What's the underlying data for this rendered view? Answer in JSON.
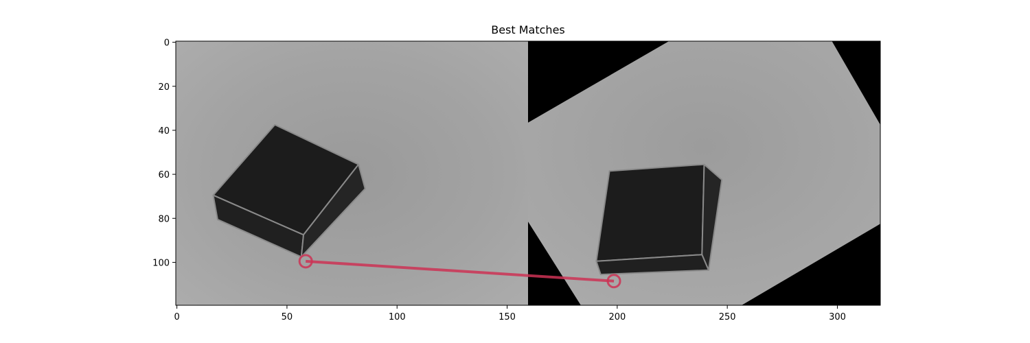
{
  "chart_data": {
    "type": "image",
    "title": "Best Matches",
    "xlabel": "",
    "ylabel": "",
    "xlim": [
      0,
      320
    ],
    "ylim": [
      120,
      0
    ],
    "x_ticks": [
      0,
      50,
      100,
      150,
      200,
      250,
      300
    ],
    "y_ticks": [
      0,
      20,
      40,
      60,
      80,
      100
    ],
    "grid": false,
    "panels": [
      {
        "name": "",
        "x_range": [
          0,
          160
        ],
        "y_range": [
          0,
          120
        ]
      },
      {
        "name": "",
        "x_range": [
          160,
          320
        ],
        "y_range": [
          0,
          120
        ]
      }
    ],
    "objects": [
      {
        "kind": "box-top-face",
        "panel": 0,
        "points": [
          [
            45,
            38
          ],
          [
            83,
            56
          ],
          [
            58,
            88
          ],
          [
            17,
            70
          ]
        ]
      },
      {
        "kind": "box-front-face",
        "panel": 0,
        "points": [
          [
            17,
            70
          ],
          [
            58,
            88
          ],
          [
            57,
            98
          ],
          [
            19,
            81
          ]
        ]
      },
      {
        "kind": "box-side-face",
        "panel": 0,
        "points": [
          [
            58,
            88
          ],
          [
            83,
            56
          ],
          [
            86,
            67
          ],
          [
            57,
            98
          ]
        ]
      },
      {
        "kind": "box-top-face",
        "panel": 1,
        "points": [
          [
            197,
            59
          ],
          [
            240,
            56
          ],
          [
            239,
            97
          ],
          [
            191,
            100
          ]
        ]
      },
      {
        "kind": "box-side-face",
        "panel": 1,
        "points": [
          [
            240,
            56
          ],
          [
            248,
            63
          ],
          [
            242,
            104
          ],
          [
            239,
            97
          ]
        ]
      },
      {
        "kind": "box-front-face",
        "panel": 1,
        "points": [
          [
            191,
            100
          ],
          [
            239,
            97
          ],
          [
            242,
            104
          ],
          [
            193,
            106
          ]
        ]
      },
      {
        "kind": "black-border",
        "panel": 1,
        "points": [
          [
            160,
            0
          ],
          [
            224,
            0
          ],
          [
            160,
            37
          ]
        ]
      },
      {
        "kind": "black-border",
        "panel": 1,
        "points": [
          [
            298,
            0
          ],
          [
            320,
            0
          ],
          [
            320,
            38
          ]
        ]
      },
      {
        "kind": "black-border",
        "panel": 1,
        "points": [
          [
            320,
            83
          ],
          [
            320,
            120
          ],
          [
            257,
            120
          ]
        ]
      },
      {
        "kind": "black-border",
        "panel": 1,
        "points": [
          [
            160,
            82
          ],
          [
            184,
            120
          ],
          [
            160,
            120
          ]
        ]
      }
    ],
    "matches": [
      {
        "x1": 59,
        "y1": 100,
        "x2": 199,
        "y2": 109
      }
    ],
    "colors": {
      "match_line": "#cc3355",
      "background_gray": "#a0a0a0",
      "box_dark": "#1c1c1c",
      "box_edge": "#8a8a8a",
      "border_black": "#000000"
    }
  }
}
